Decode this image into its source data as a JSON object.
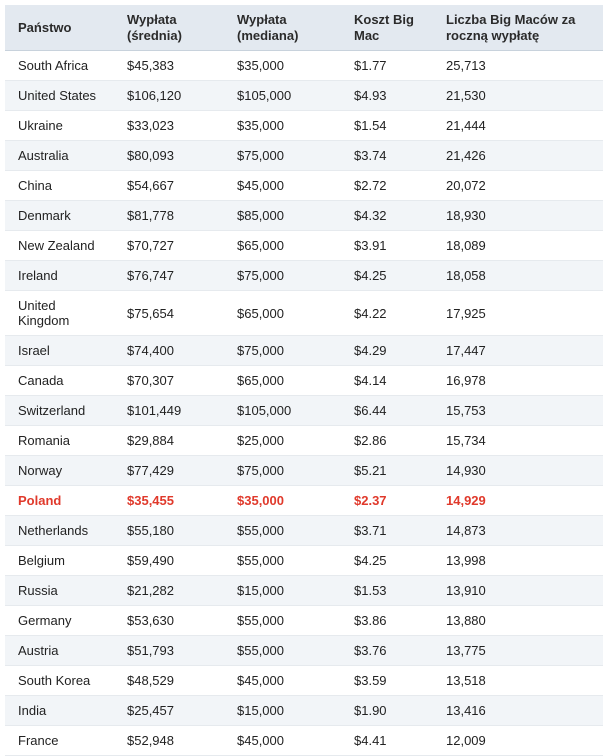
{
  "headers": [
    "Państwo",
    "Wypłata (średnia)",
    "Wypłata (mediana)",
    "Koszt Big Mac",
    "Liczba Big Maców za roczną wypłatę"
  ],
  "rows": [
    [
      "South Africa",
      "$45,383",
      "$35,000",
      "$1.77",
      "25,713"
    ],
    [
      "United States",
      "$106,120",
      "$105,000",
      "$4.93",
      "21,530"
    ],
    [
      "Ukraine",
      "$33,023",
      "$35,000",
      "$1.54",
      "21,444"
    ],
    [
      "Australia",
      "$80,093",
      "$75,000",
      "$3.74",
      "21,426"
    ],
    [
      "China",
      "$54,667",
      "$45,000",
      "$2.72",
      "20,072"
    ],
    [
      "Denmark",
      "$81,778",
      "$85,000",
      "$4.32",
      "18,930"
    ],
    [
      "New Zealand",
      "$70,727",
      "$65,000",
      "$3.91",
      "18,089"
    ],
    [
      "Ireland",
      "$76,747",
      "$75,000",
      "$4.25",
      "18,058"
    ],
    [
      "United Kingdom",
      "$75,654",
      "$65,000",
      "$4.22",
      "17,925"
    ],
    [
      "Israel",
      "$74,400",
      "$75,000",
      "$4.29",
      "17,447"
    ],
    [
      "Canada",
      "$70,307",
      "$65,000",
      "$4.14",
      "16,978"
    ],
    [
      "Switzerland",
      "$101,449",
      "$105,000",
      "$6.44",
      "15,753"
    ],
    [
      "Romania",
      "$29,884",
      "$25,000",
      "$2.86",
      "15,734"
    ],
    [
      "Norway",
      "$77,429",
      "$75,000",
      "$5.21",
      "14,930"
    ],
    [
      "Poland",
      "$35,455",
      "$35,000",
      "$2.37",
      "14,929"
    ],
    [
      "Netherlands",
      "$55,180",
      "$55,000",
      "$3.71",
      "14,873"
    ],
    [
      "Belgium",
      "$59,490",
      "$55,000",
      "$4.25",
      "13,998"
    ],
    [
      "Russia",
      "$21,282",
      "$15,000",
      "$1.53",
      "13,910"
    ],
    [
      "Germany",
      "$53,630",
      "$55,000",
      "$3.86",
      "13,880"
    ],
    [
      "Austria",
      "$51,793",
      "$55,000",
      "$3.76",
      "13,775"
    ],
    [
      "South Korea",
      "$48,529",
      "$45,000",
      "$3.59",
      "13,518"
    ],
    [
      "India",
      "$25,457",
      "$15,000",
      "$1.90",
      "13,416"
    ],
    [
      "France",
      "$52,948",
      "$45,000",
      "$4.41",
      "12,009"
    ]
  ],
  "highlight_country": "Poland",
  "colors": {
    "header_bg": "#e3e9f0",
    "stripe_bg": "#f2f5f8",
    "highlight_text": "#e0392b"
  }
}
